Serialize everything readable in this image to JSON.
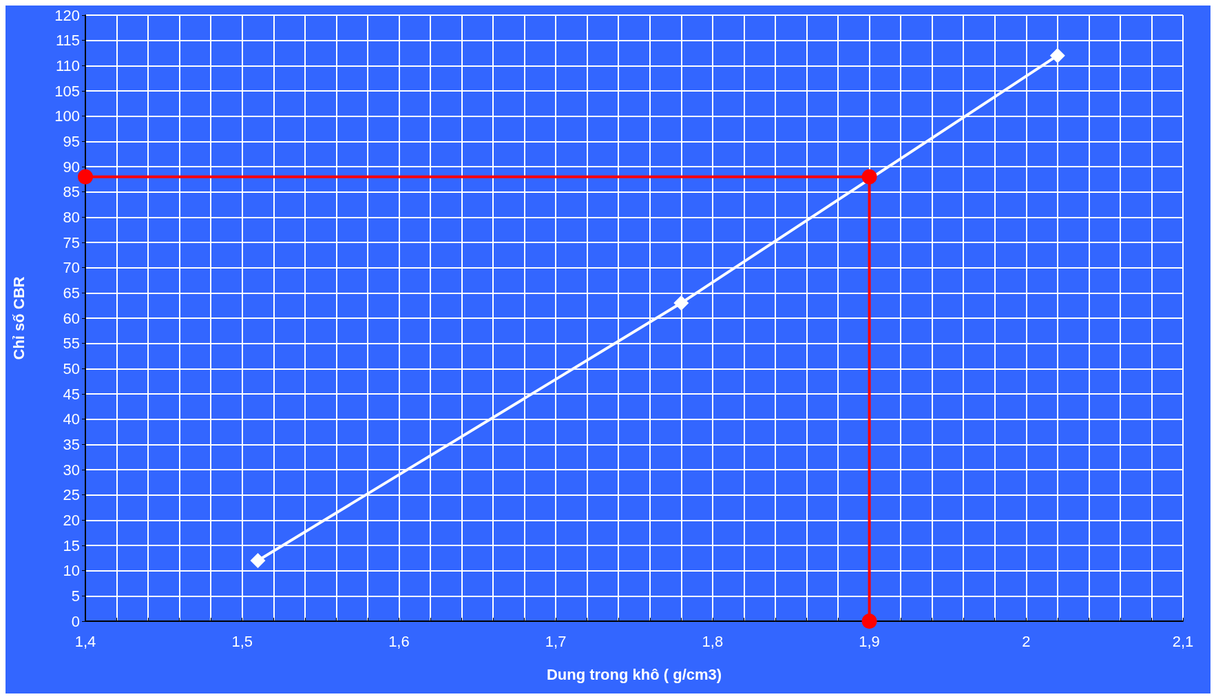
{
  "chart_data": {
    "type": "line",
    "xlabel": "Dung trong khô ( g/cm3)",
    "ylabel": "Chỉ số CBR",
    "xlim": [
      1.4,
      2.1
    ],
    "xticks": [
      {
        "value": 1.4,
        "label": "1,4"
      },
      {
        "value": 1.42,
        "label": null
      },
      {
        "value": 1.44,
        "label": null
      },
      {
        "value": 1.46,
        "label": null
      },
      {
        "value": 1.48,
        "label": null
      },
      {
        "value": 1.5,
        "label": "1,5"
      },
      {
        "value": 1.52,
        "label": null
      },
      {
        "value": 1.54,
        "label": null
      },
      {
        "value": 1.56,
        "label": null
      },
      {
        "value": 1.58,
        "label": null
      },
      {
        "value": 1.6,
        "label": "1,6"
      },
      {
        "value": 1.62,
        "label": null
      },
      {
        "value": 1.64,
        "label": null
      },
      {
        "value": 1.66,
        "label": null
      },
      {
        "value": 1.68,
        "label": null
      },
      {
        "value": 1.7,
        "label": "1,7"
      },
      {
        "value": 1.72,
        "label": null
      },
      {
        "value": 1.74,
        "label": null
      },
      {
        "value": 1.76,
        "label": null
      },
      {
        "value": 1.78,
        "label": null
      },
      {
        "value": 1.8,
        "label": "1,8"
      },
      {
        "value": 1.82,
        "label": null
      },
      {
        "value": 1.84,
        "label": null
      },
      {
        "value": 1.86,
        "label": null
      },
      {
        "value": 1.88,
        "label": null
      },
      {
        "value": 1.9,
        "label": "1,9"
      },
      {
        "value": 1.92,
        "label": null
      },
      {
        "value": 1.94,
        "label": null
      },
      {
        "value": 1.96,
        "label": null
      },
      {
        "value": 1.98,
        "label": null
      },
      {
        "value": 2,
        "label": "2"
      },
      {
        "value": 2.02,
        "label": null
      },
      {
        "value": 2.04,
        "label": null
      },
      {
        "value": 2.06,
        "label": null
      },
      {
        "value": 2.08,
        "label": null
      },
      {
        "value": 2.1,
        "label": "2,1"
      }
    ],
    "ylim": [
      0,
      120
    ],
    "yticks": [
      0,
      5,
      10,
      15,
      20,
      25,
      30,
      35,
      40,
      45,
      50,
      55,
      60,
      65,
      70,
      75,
      80,
      85,
      90,
      95,
      100,
      105,
      110,
      115,
      120
    ],
    "grid": true,
    "line_style": "solid",
    "series": [
      {
        "color": "#ffffff",
        "marker": "diamond",
        "x": [
          1.51,
          1.78,
          2.02
        ],
        "values": [
          12,
          63,
          112
        ]
      },
      {
        "color": "#ff0000",
        "marker": "circle",
        "x": [
          1.9,
          1.9,
          1.4
        ],
        "values": [
          0,
          88,
          88
        ]
      }
    ]
  }
}
